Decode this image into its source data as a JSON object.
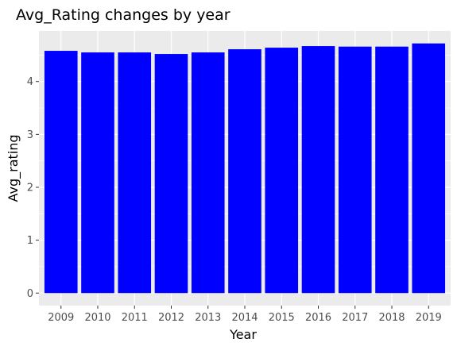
{
  "chart_data": {
    "type": "bar",
    "title": "Avg_Rating changes by year",
    "xlabel": "Year",
    "ylabel": "Avg_rating",
    "categories": [
      "2009",
      "2010",
      "2011",
      "2012",
      "2013",
      "2014",
      "2015",
      "2016",
      "2017",
      "2018",
      "2019"
    ],
    "values": [
      4.58,
      4.55,
      4.55,
      4.52,
      4.55,
      4.61,
      4.64,
      4.67,
      4.66,
      4.66,
      4.72
    ],
    "yticks": [
      0,
      1,
      2,
      3,
      4
    ],
    "ytick_labels": [
      "0",
      "1",
      "2",
      "3",
      "4"
    ],
    "ylim": [
      -0.236,
      4.956
    ],
    "bar_color": "#0000ff",
    "panel_background": "#ebebeb",
    "grid": true,
    "legend": "none"
  }
}
